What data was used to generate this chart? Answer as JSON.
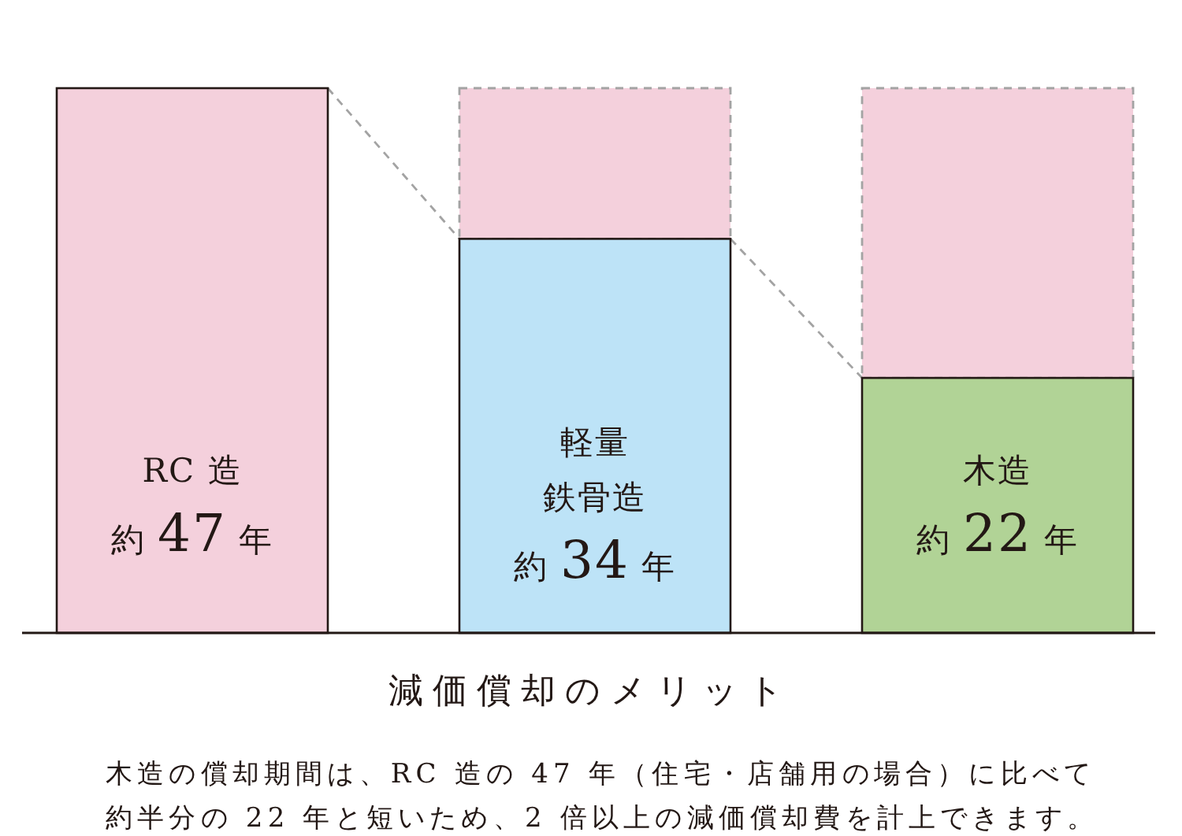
{
  "chart_data": {
    "type": "bar",
    "title": "減価償却のメリット",
    "categories": [
      "RC 造",
      "軽量鉄骨造",
      "木造"
    ],
    "stacked": true,
    "series": [
      {
        "values": [
          47,
          34,
          22
        ],
        "colors": [
          "#f4d0dc",
          "#bde3f7",
          "#b1d396"
        ],
        "value_labels": [
          "約 47 年",
          "約 34 年",
          "約 22 年"
        ]
      },
      {
        "values": [
          null,
          13,
          25
        ],
        "color": "#f4d0dc",
        "line_style": "dashed"
      }
    ],
    "tick_labels": "x",
    "annotations": [
      "木造の償却期間は、RC 造の 47 年（住宅・店舗用の場合）に比べて約半分の 22 年と短いため、2 倍以上の減価償却費を計上できます。"
    ]
  }
}
